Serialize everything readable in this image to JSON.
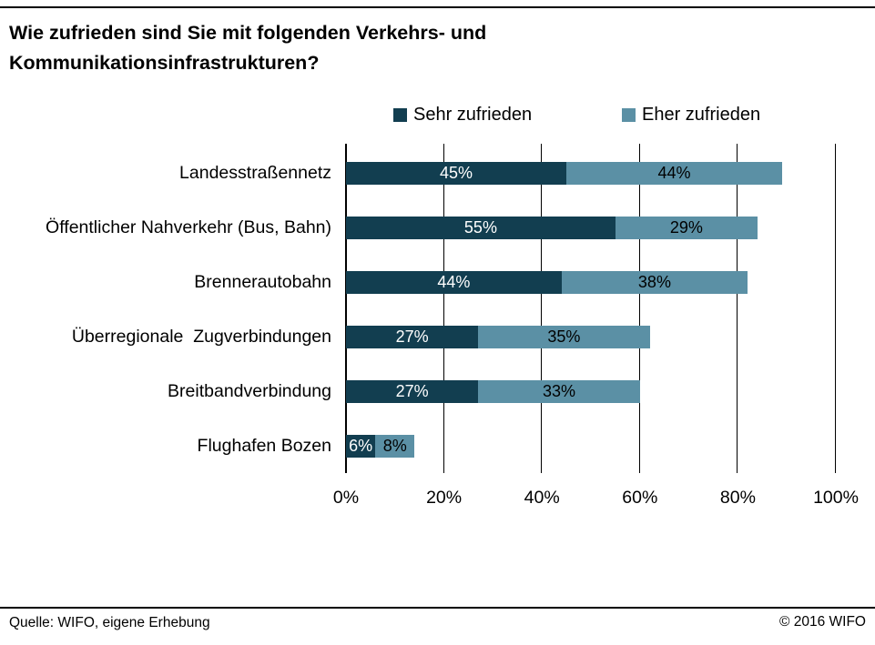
{
  "title": "Wie zufrieden sind Sie mit folgenden Verkehrs- und Kommunikationsinfrastrukturen?",
  "legend": {
    "items": [
      {
        "label": "Sehr zufrieden",
        "color": "#123e50"
      },
      {
        "label": "Eher zufrieden",
        "color": "#5b90a5"
      }
    ]
  },
  "footer": {
    "source": "Quelle: WIFO, eigene Erhebung",
    "copyright": "© 2016 WIFO"
  },
  "chart_data": {
    "type": "bar",
    "orientation": "horizontal",
    "stacked": true,
    "title": "Wie zufrieden sind Sie mit folgenden Verkehrs- und Kommunikationsinfrastrukturen?",
    "categories": [
      "Landesstraßennetz",
      "Öffentlicher Nahverkehr (Bus, Bahn)",
      "Brennerautobahn",
      "Überregionale  Zugverbindungen",
      "Breitbandverbindung",
      "Flughafen Bozen"
    ],
    "series": [
      {
        "name": "Sehr zufrieden",
        "color": "#123e50",
        "label_color": "#ffffff",
        "values": [
          45,
          55,
          44,
          27,
          27,
          6
        ]
      },
      {
        "name": "Eher zufrieden",
        "color": "#5b90a5",
        "label_color": "#000000",
        "values": [
          44,
          29,
          38,
          35,
          33,
          8
        ]
      }
    ],
    "value_suffix": "%",
    "x_ticks": [
      "0%",
      "20%",
      "40%",
      "60%",
      "80%",
      "100%"
    ],
    "x_tick_values": [
      0,
      20,
      40,
      60,
      80,
      100
    ],
    "xlim": [
      0,
      100
    ],
    "grid": true,
    "legend_position": "top"
  }
}
